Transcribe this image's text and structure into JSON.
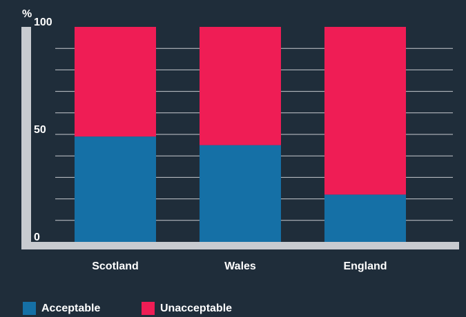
{
  "chart_data": {
    "type": "stacked_bar",
    "y_unit": "%",
    "categories": [
      "Scotland",
      "Wales",
      "England"
    ],
    "series": [
      {
        "name": "Acceptable",
        "color": "#1570a6",
        "values": [
          49,
          45,
          22
        ]
      },
      {
        "name": "Unacceptable",
        "color": "#ef1d55",
        "values": [
          51,
          55,
          78
        ]
      }
    ],
    "ylim": [
      0,
      100
    ],
    "yticks": [
      0,
      50,
      100
    ],
    "grid_yticks": [
      10,
      20,
      30,
      40,
      50,
      60,
      70,
      80,
      90
    ],
    "grid": true
  }
}
